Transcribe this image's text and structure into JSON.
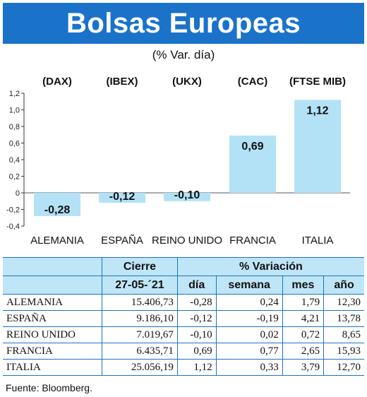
{
  "title": "Bolsas Europeas",
  "subtitle": "(% Var. día)",
  "chart_data": {
    "type": "bar",
    "indices": [
      "(DAX)",
      "(IBEX)",
      "(UKX)",
      "(CAC)",
      "(FTSE MIB)"
    ],
    "categories": [
      "ALEMANIA",
      "ESPAÑA",
      "REINO UNIDO",
      "FRANCIA",
      "ITALIA"
    ],
    "values": [
      -0.28,
      -0.12,
      -0.1,
      0.69,
      1.12
    ],
    "value_labels": [
      "-0,28",
      "-0,12",
      "-0,10",
      "0,69",
      "1,12"
    ],
    "ylim": [
      -0.4,
      1.2
    ],
    "yticks": [
      -0.4,
      -0.2,
      0,
      0.2,
      0.4,
      0.6,
      0.8,
      1.0,
      1.2
    ],
    "ytick_labels": [
      "-0,4",
      "-0,2",
      "0",
      "0,2",
      "0,4",
      "0,6",
      "0,8",
      "1,0",
      "1,2"
    ],
    "bar_color": "#b3e2f6",
    "grid": false
  },
  "table": {
    "header_cierre": "Cierre",
    "header_variacion": "% Variación",
    "header_date": "27-05-´21",
    "col_headers": [
      "día",
      "semana",
      "mes",
      "año"
    ],
    "rows": [
      [
        "ALEMANIA",
        "15.406,73",
        "-0,28",
        "0,24",
        "1,79",
        "12,30"
      ],
      [
        "ESPAÑA",
        "9.186,10",
        "-0,12",
        "-0,19",
        "4,21",
        "13,78"
      ],
      [
        "REINO UNIDO",
        "7.019,67",
        "-0,10",
        "0,02",
        "0,72",
        "8,65"
      ],
      [
        "FRANCIA",
        "6.435,71",
        "0,69",
        "0,77",
        "2,65",
        "15,93"
      ],
      [
        "ITALIA",
        "25.056,19",
        "1,12",
        "0,33",
        "3,79",
        "12,70"
      ]
    ]
  },
  "source": "Fuente: Bloomberg.",
  "colors": {
    "accent": "#1a73c9",
    "header_bg": "#bfe6f7",
    "bar": "#b3e2f6"
  }
}
